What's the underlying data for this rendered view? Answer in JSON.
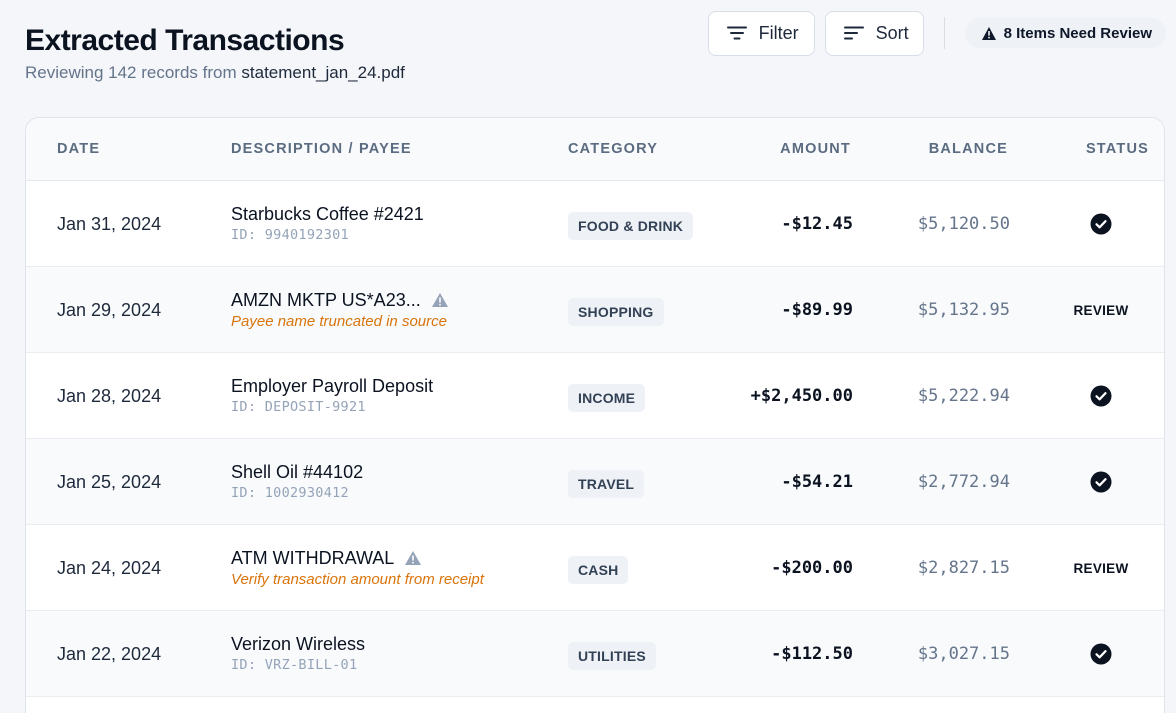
{
  "header": {
    "title": "Extracted Transactions",
    "subtitle_prefix": "Reviewing 142 records from",
    "file_name": "statement_jan_24.pdf"
  },
  "actions": {
    "filter_label": "Filter",
    "sort_label": "Sort",
    "review_badge": "8 Items Need Review"
  },
  "columns": {
    "date": "DATE",
    "description": "DESCRIPTION / PAYEE",
    "category": "CATEGORY",
    "amount": "AMOUNT",
    "balance": "BALANCE",
    "status": "STATUS"
  },
  "rows": [
    {
      "date": "Jan 31, 2024",
      "payee": "Starbucks Coffee #2421",
      "sub": "ID: 9940192301",
      "category": "FOOD & DRINK",
      "amount": "-$12.45",
      "balance": "$5,120.50",
      "status": "ok"
    },
    {
      "date": "Jan 29, 2024",
      "payee": "AMZN MKTP US*A23...",
      "sub": "Payee name truncated in source",
      "category": "SHOPPING",
      "amount": "-$89.99",
      "balance": "$5,132.95",
      "status": "review",
      "status_label": "REVIEW"
    },
    {
      "date": "Jan 28, 2024",
      "payee": "Employer Payroll Deposit",
      "sub": "ID: DEPOSIT-9921",
      "category": "INCOME",
      "amount": "+$2,450.00",
      "balance": "$5,222.94",
      "status": "ok"
    },
    {
      "date": "Jan 25, 2024",
      "payee": "Shell Oil #44102",
      "sub": "ID: 1002930412",
      "category": "TRAVEL",
      "amount": "-$54.21",
      "balance": "$2,772.94",
      "status": "ok"
    },
    {
      "date": "Jan 24, 2024",
      "payee": "ATM WITHDRAWAL",
      "sub": "Verify transaction amount from receipt",
      "category": "CASH",
      "amount": "-$200.00",
      "balance": "$2,827.15",
      "status": "review",
      "status_label": "REVIEW"
    },
    {
      "date": "Jan 22, 2024",
      "payee": "Verizon Wireless",
      "sub": "ID: VRZ-BILL-01",
      "category": "UTILITIES",
      "amount": "-$112.50",
      "balance": "$3,027.15",
      "status": "ok"
    }
  ],
  "colors": {
    "warning_text": "#d9740b",
    "warning_icon": "#94a3b8",
    "ok_icon": "#0b1220"
  },
  "icons": {
    "filter": "filter-lines-icon",
    "sort": "sort-lines-icon",
    "alert": "warning-triangle-icon",
    "ok": "check-circle-icon"
  }
}
